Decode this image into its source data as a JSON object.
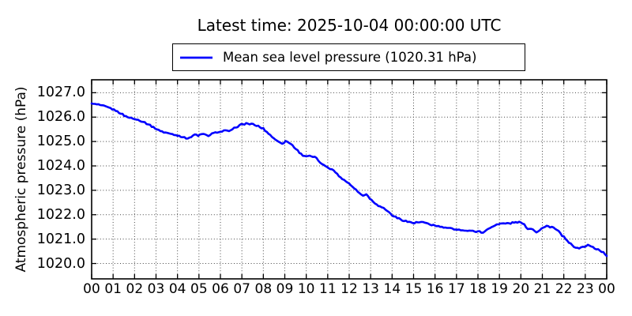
{
  "chart_data": {
    "type": "line",
    "title": "Latest time: 2025-10-04 00:00:00 UTC",
    "xlabel": "",
    "ylabel": "Atmospheric pressure (hPa)",
    "legend": {
      "position": "top-center",
      "label": "Mean sea level pressure (1020.31 hPa)"
    },
    "latest_value_hpa": 1020.31,
    "grid": "dotted",
    "xlim": [
      0,
      24
    ],
    "ylim": [
      1019.37,
      1027.53
    ],
    "x_tick_labels": [
      "00",
      "01",
      "02",
      "03",
      "04",
      "05",
      "06",
      "07",
      "08",
      "09",
      "10",
      "11",
      "12",
      "13",
      "14",
      "15",
      "16",
      "17",
      "18",
      "19",
      "20",
      "21",
      "22",
      "23",
      "00"
    ],
    "y_ticks": [
      1020.0,
      1021.0,
      1022.0,
      1023.0,
      1024.0,
      1025.0,
      1026.0,
      1027.0
    ],
    "y_tick_labels": [
      "1020.0",
      "1021.0",
      "1022.0",
      "1023.0",
      "1024.0",
      "1025.0",
      "1026.0",
      "1027.0"
    ],
    "series": [
      {
        "name": "Mean sea level pressure",
        "color": "#0000ff",
        "units": "hPa",
        "points": [
          [
            0.0,
            1026.56
          ],
          [
            0.25,
            1026.52
          ],
          [
            0.5,
            1026.47
          ],
          [
            0.75,
            1026.4
          ],
          [
            1.0,
            1026.32
          ],
          [
            1.3,
            1026.18
          ],
          [
            1.6,
            1026.03
          ],
          [
            2.0,
            1025.92
          ],
          [
            2.3,
            1025.85
          ],
          [
            2.6,
            1025.73
          ],
          [
            3.0,
            1025.52
          ],
          [
            3.3,
            1025.4
          ],
          [
            3.6,
            1025.33
          ],
          [
            3.9,
            1025.27
          ],
          [
            4.15,
            1025.22
          ],
          [
            4.35,
            1025.14
          ],
          [
            4.6,
            1025.16
          ],
          [
            4.8,
            1025.28
          ],
          [
            5.0,
            1025.25
          ],
          [
            5.2,
            1025.31
          ],
          [
            5.4,
            1025.23
          ],
          [
            5.55,
            1025.28
          ],
          [
            5.75,
            1025.37
          ],
          [
            6.0,
            1025.4
          ],
          [
            6.2,
            1025.45
          ],
          [
            6.45,
            1025.42
          ],
          [
            6.7,
            1025.58
          ],
          [
            7.0,
            1025.7
          ],
          [
            7.25,
            1025.74
          ],
          [
            7.5,
            1025.7
          ],
          [
            7.75,
            1025.63
          ],
          [
            8.0,
            1025.52
          ],
          [
            8.3,
            1025.28
          ],
          [
            8.6,
            1025.05
          ],
          [
            8.85,
            1024.92
          ],
          [
            9.1,
            1025.02
          ],
          [
            9.35,
            1024.85
          ],
          [
            9.6,
            1024.62
          ],
          [
            9.85,
            1024.42
          ],
          [
            10.15,
            1024.4
          ],
          [
            10.45,
            1024.34
          ],
          [
            10.7,
            1024.08
          ],
          [
            11.0,
            1023.95
          ],
          [
            11.3,
            1023.8
          ],
          [
            11.6,
            1023.52
          ],
          [
            12.0,
            1023.28
          ],
          [
            12.35,
            1023.0
          ],
          [
            12.6,
            1022.78
          ],
          [
            12.8,
            1022.85
          ],
          [
            13.0,
            1022.62
          ],
          [
            13.35,
            1022.38
          ],
          [
            13.7,
            1022.22
          ],
          [
            14.0,
            1021.98
          ],
          [
            14.35,
            1021.82
          ],
          [
            14.7,
            1021.72
          ],
          [
            15.0,
            1021.66
          ],
          [
            15.35,
            1021.7
          ],
          [
            15.7,
            1021.62
          ],
          [
            16.0,
            1021.55
          ],
          [
            16.5,
            1021.46
          ],
          [
            17.0,
            1021.4
          ],
          [
            17.5,
            1021.34
          ],
          [
            18.0,
            1021.32
          ],
          [
            18.2,
            1021.26
          ],
          [
            18.5,
            1021.42
          ],
          [
            18.8,
            1021.58
          ],
          [
            19.0,
            1021.63
          ],
          [
            19.5,
            1021.65
          ],
          [
            19.8,
            1021.7
          ],
          [
            20.05,
            1021.67
          ],
          [
            20.3,
            1021.45
          ],
          [
            20.45,
            1021.4
          ],
          [
            20.55,
            1021.44
          ],
          [
            20.7,
            1021.27
          ],
          [
            21.0,
            1021.46
          ],
          [
            21.2,
            1021.53
          ],
          [
            21.45,
            1021.5
          ],
          [
            21.7,
            1021.36
          ],
          [
            22.0,
            1021.08
          ],
          [
            22.25,
            1020.84
          ],
          [
            22.5,
            1020.68
          ],
          [
            22.65,
            1020.62
          ],
          [
            22.8,
            1020.66
          ],
          [
            23.0,
            1020.7
          ],
          [
            23.15,
            1020.76
          ],
          [
            23.35,
            1020.66
          ],
          [
            23.6,
            1020.57
          ],
          [
            23.8,
            1020.48
          ],
          [
            24.0,
            1020.31
          ]
        ]
      }
    ]
  },
  "colors": {
    "line": "#0000ff",
    "axes": "#000000",
    "grid": "#444444",
    "background": "#ffffff"
  }
}
